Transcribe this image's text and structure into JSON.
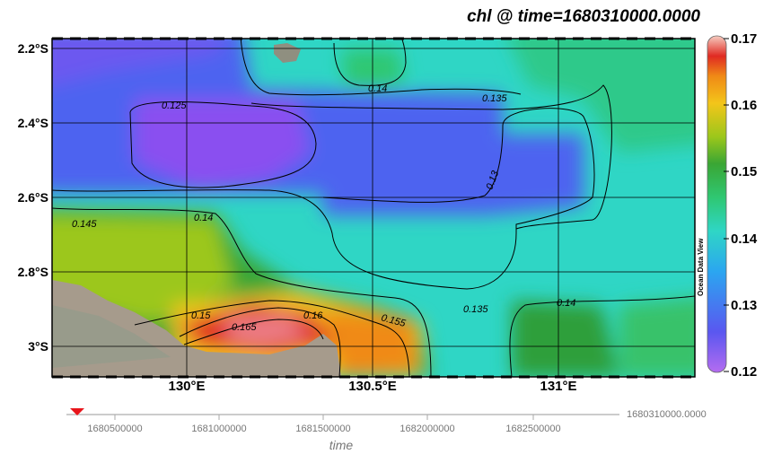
{
  "title": "chl @ time=1680310000.0000",
  "map": {
    "lat_labels": [
      "2.2°S",
      "2.4°S",
      "2.6°S",
      "2.8°S",
      "3°S"
    ],
    "lon_labels": [
      "130°E",
      "130.5°E",
      "131°E"
    ],
    "contour_labels": [
      "0.125",
      "0.14",
      "0.135",
      "0.13",
      "0.145",
      "0.14",
      "0.135",
      "0.14",
      "0.15",
      "0.165",
      "0.16",
      "0.155"
    ],
    "credit": "Ocean Data View"
  },
  "colorbar": {
    "tick_labels": [
      "0.17",
      "0.16",
      "0.15",
      "0.14",
      "0.13",
      "0.12"
    ],
    "range": [
      0.12,
      0.17
    ],
    "colors": [
      "#b46cf0",
      "#5a57f0",
      "#2ba6f0",
      "#2fd6c5",
      "#2fc772",
      "#3aa634",
      "#9cc71b",
      "#f3c51a",
      "#f08a16",
      "#e02a22",
      "#eaa29c",
      "#f6ccc0"
    ]
  },
  "time_slider": {
    "current_value": "1680310000.0000",
    "tick_labels": [
      "1680500000",
      "1681000000",
      "1681500000",
      "1682000000",
      "1682500000"
    ],
    "axis_label": "time",
    "marker_color": "#e8141a"
  }
}
